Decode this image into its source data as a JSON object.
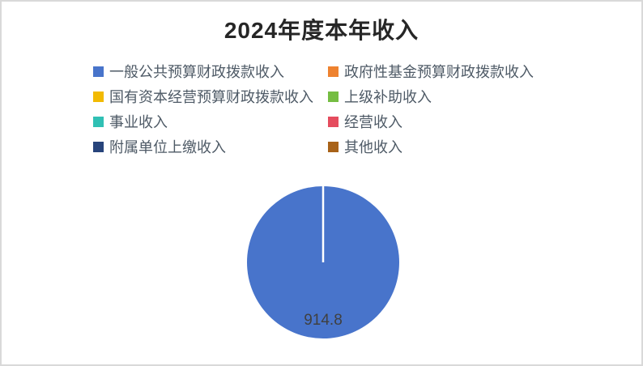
{
  "window": {
    "background": "#FFFFFF",
    "border_color": "#D9D9D9"
  },
  "chart_data": {
    "type": "pie",
    "title": "2024年度本年收入",
    "title_color": "#262626",
    "legend_position": "top",
    "legend_columns": 2,
    "legend_text_color": "#4E5A66",
    "data_label": "914.8",
    "data_label_color": "#404040",
    "slice_divider_color": "#FFFFFF",
    "series": [
      {
        "name": "一般公共预算财政拨款收入",
        "value": 914.8,
        "color": "#4874CB"
      },
      {
        "name": "政府性基金预算财政拨款收入",
        "value": 0,
        "color": "#EE822F"
      },
      {
        "name": "国有资本经营预算财政拨款收入",
        "value": 0,
        "color": "#F2BA02"
      },
      {
        "name": "上级补助收入",
        "value": 0,
        "color": "#75BD42"
      },
      {
        "name": "事业收入",
        "value": 0,
        "color": "#30C0B4"
      },
      {
        "name": "经营收入",
        "value": 0,
        "color": "#E54C5E"
      },
      {
        "name": "附属单位上缴收入",
        "value": 0,
        "color": "#27447B"
      },
      {
        "name": "其他收入",
        "value": 0,
        "color": "#A86218"
      }
    ]
  }
}
